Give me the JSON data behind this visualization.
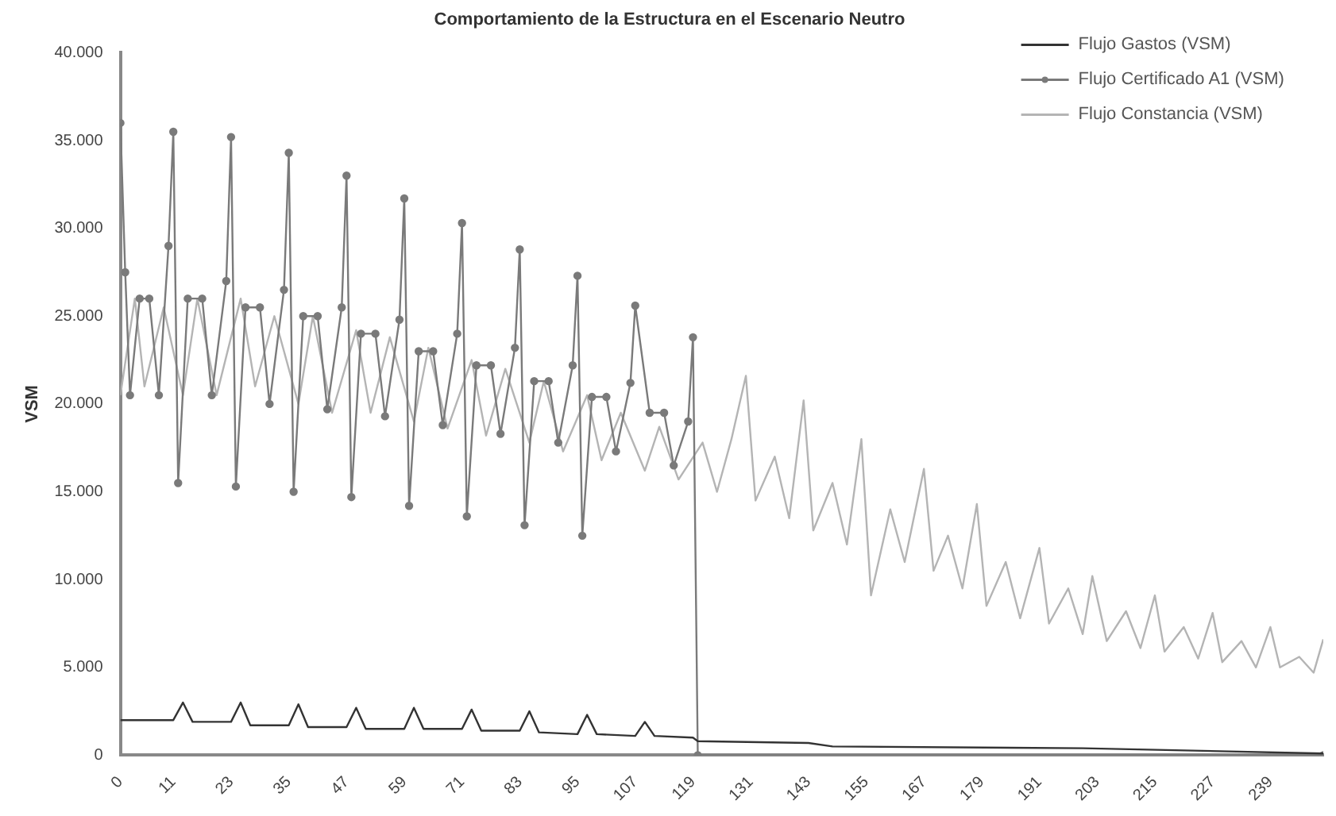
{
  "chart_data": {
    "type": "line",
    "title": "Comportamiento de la Estructura en el Escenario Neutro",
    "ylabel": "VSM",
    "xlim": [
      0,
      250
    ],
    "xticks": [
      0,
      11,
      23,
      35,
      47,
      59,
      71,
      83,
      95,
      107,
      119,
      131,
      143,
      155,
      167,
      179,
      191,
      203,
      215,
      227,
      239
    ],
    "ylim": [
      0,
      40000
    ],
    "yticks": [
      {
        "value": 0,
        "label": "0"
      },
      {
        "value": 5000,
        "label": "5.000"
      },
      {
        "value": 10000,
        "label": "10.000"
      },
      {
        "value": 15000,
        "label": "15.000"
      },
      {
        "value": 20000,
        "label": "20.000"
      },
      {
        "value": 25000,
        "label": "25.000"
      },
      {
        "value": 30000,
        "label": "30.000"
      },
      {
        "value": 35000,
        "label": "35.000"
      },
      {
        "value": 40000,
        "label": "40.000"
      }
    ],
    "grid": false,
    "legend": "top right",
    "marker": "none",
    "line_style": "solid",
    "series": [
      {
        "name": "Flujo Gastos (VSM)",
        "color": "#333333",
        "x": [
          0,
          11,
          13,
          15,
          23,
          25,
          27,
          35,
          37,
          39,
          47,
          49,
          51,
          59,
          61,
          63,
          71,
          73,
          75,
          83,
          85,
          87,
          95,
          97,
          99,
          107,
          109,
          111,
          119,
          120,
          143,
          148,
          200,
          250
        ],
        "values": [
          2000,
          2000,
          3000,
          1900,
          1900,
          3000,
          1700,
          1700,
          2900,
          1600,
          1600,
          2700,
          1500,
          1500,
          2700,
          1500,
          1500,
          2600,
          1400,
          1400,
          2500,
          1300,
          1200,
          2300,
          1200,
          1100,
          1900,
          1100,
          1000,
          800,
          700,
          500,
          400,
          100
        ]
      },
      {
        "name": "Flujo Certificado A1 (VSM)",
        "color": "#7a7a7a",
        "marker": "circle",
        "x": [
          0,
          1,
          2,
          4,
          6,
          8,
          10,
          11,
          12,
          14,
          17,
          19,
          22,
          23,
          24,
          26,
          29,
          31,
          34,
          35,
          36,
          38,
          41,
          43,
          46,
          47,
          48,
          50,
          53,
          55,
          58,
          59,
          60,
          62,
          65,
          67,
          70,
          71,
          72,
          74,
          77,
          79,
          82,
          83,
          84,
          86,
          89,
          91,
          94,
          95,
          96,
          98,
          101,
          103,
          106,
          107,
          110,
          113,
          115,
          118,
          119,
          120,
          250
        ],
        "values": [
          36000,
          27500,
          20500,
          26000,
          26000,
          20500,
          29000,
          35500,
          15500,
          26000,
          26000,
          20500,
          27000,
          35200,
          15300,
          25500,
          25500,
          20000,
          26500,
          34300,
          15000,
          25000,
          25000,
          19700,
          25500,
          33000,
          14700,
          24000,
          24000,
          19300,
          24800,
          31700,
          14200,
          23000,
          23000,
          18800,
          24000,
          30300,
          13600,
          22200,
          22200,
          18300,
          23200,
          28800,
          13100,
          21300,
          21300,
          17800,
          22200,
          27300,
          12500,
          20400,
          20400,
          17300,
          21200,
          25600,
          19500,
          19500,
          16500,
          19000,
          23800,
          0,
          0
        ]
      },
      {
        "name": "Flujo Constancia (VSM)",
        "color": "#b4b4b4",
        "x": [
          0,
          3,
          5,
          9,
          13,
          16,
          20,
          25,
          28,
          32,
          37,
          40,
          44,
          49,
          52,
          56,
          61,
          64,
          68,
          73,
          76,
          80,
          85,
          88,
          92,
          97,
          100,
          104,
          109,
          112,
          116,
          121,
          124,
          127,
          130,
          132,
          136,
          139,
          142,
          144,
          148,
          151,
          154,
          156,
          160,
          163,
          167,
          169,
          172,
          175,
          178,
          180,
          184,
          187,
          191,
          193,
          197,
          200,
          202,
          205,
          209,
          212,
          215,
          217,
          221,
          224,
          227,
          229,
          233,
          236,
          239,
          241,
          245,
          248,
          250
        ],
        "values": [
          20500,
          26000,
          21000,
          25500,
          20500,
          26000,
          20500,
          26000,
          21000,
          25000,
          20000,
          25000,
          19500,
          24200,
          19500,
          23800,
          19000,
          23200,
          18600,
          22500,
          18200,
          22000,
          17800,
          21300,
          17300,
          20500,
          16800,
          19500,
          16200,
          18700,
          15700,
          17800,
          15000,
          18000,
          21600,
          14500,
          17000,
          13500,
          20200,
          12800,
          15500,
          12000,
          18000,
          9100,
          14000,
          11000,
          16300,
          10500,
          12500,
          9500,
          14300,
          8500,
          11000,
          7800,
          11800,
          7500,
          9500,
          6900,
          10200,
          6500,
          8200,
          6100,
          9100,
          5900,
          7300,
          5500,
          8100,
          5300,
          6500,
          5000,
          7300,
          5000,
          5600,
          4700,
          6600
        ]
      }
    ]
  }
}
